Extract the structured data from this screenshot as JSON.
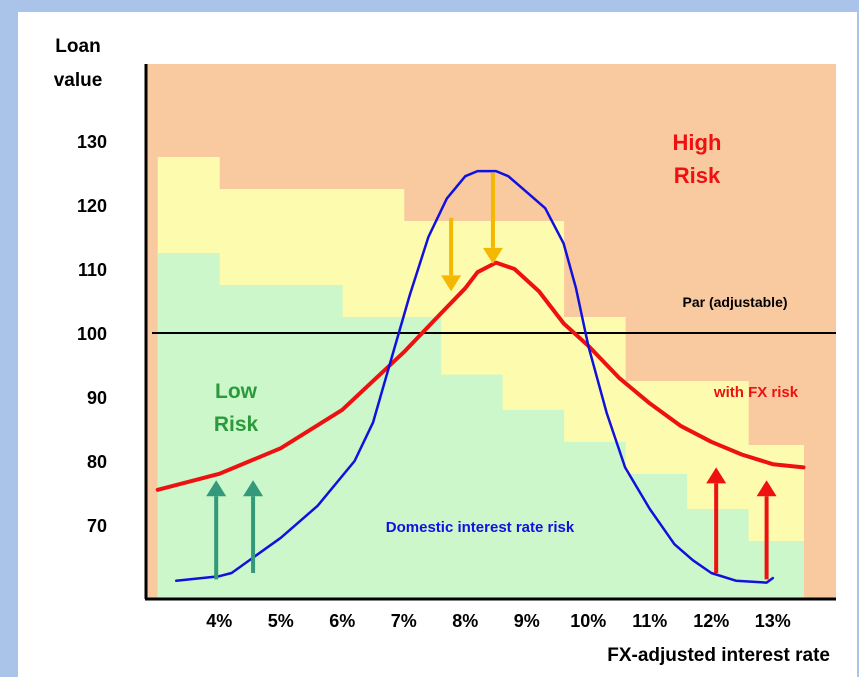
{
  "chart_data": {
    "type": "line",
    "xlabel": "FX-adjusted interest rate",
    "ylabel_lines": [
      "Loan",
      "value"
    ],
    "xlim": [
      3.0,
      13.5
    ],
    "ylim": [
      60,
      140
    ],
    "x_ticks": [
      {
        "value": 4,
        "label": "4%"
      },
      {
        "value": 5,
        "label": "5%"
      },
      {
        "value": 6,
        "label": "6%"
      },
      {
        "value": 7,
        "label": "7%"
      },
      {
        "value": 8,
        "label": "8%"
      },
      {
        "value": 9,
        "label": "9%"
      },
      {
        "value": 10,
        "label": "10%"
      },
      {
        "value": 11,
        "label": "11%"
      },
      {
        "value": 12,
        "label": "12%"
      },
      {
        "value": 13,
        "label": "13%"
      }
    ],
    "y_ticks": [
      {
        "value": 70,
        "label": "70"
      },
      {
        "value": 80,
        "label": "80"
      },
      {
        "value": 90,
        "label": "90"
      },
      {
        "value": 100,
        "label": "100"
      },
      {
        "value": 110,
        "label": "110"
      },
      {
        "value": 120,
        "label": "120"
      },
      {
        "value": 130,
        "label": "130"
      }
    ],
    "par_line": {
      "value": 100,
      "label": "Par (adjustable)"
    },
    "regions": {
      "high_risk_color": "#f9c9a0",
      "mid_risk_color": "#fdfcae",
      "low_risk_color": "#cbf7cb",
      "yellow_top_steps": [
        {
          "x0": 3.0,
          "x1": 4.0,
          "y": 127.5
        },
        {
          "x0": 4.0,
          "x1": 7.0,
          "y": 122.5
        },
        {
          "x0": 7.0,
          "x1": 9.6,
          "y": 117.5
        },
        {
          "x0": 9.6,
          "x1": 10.6,
          "y": 102.5
        },
        {
          "x0": 10.6,
          "x1": 12.6,
          "y": 92.5
        },
        {
          "x0": 12.6,
          "x1": 13.5,
          "y": 82.5
        }
      ],
      "green_top_steps": [
        {
          "x0": 3.0,
          "x1": 4.0,
          "y": 112.5
        },
        {
          "x0": 4.0,
          "x1": 6.0,
          "y": 107.5
        },
        {
          "x0": 6.0,
          "x1": 7.6,
          "y": 102.5
        },
        {
          "x0": 7.6,
          "x1": 8.6,
          "y": 93.5
        },
        {
          "x0": 8.6,
          "x1": 9.6,
          "y": 88.0
        },
        {
          "x0": 9.6,
          "x1": 10.6,
          "y": 83.0
        },
        {
          "x0": 10.6,
          "x1": 11.6,
          "y": 78.0
        },
        {
          "x0": 11.6,
          "x1": 12.6,
          "y": 72.5
        },
        {
          "x0": 12.6,
          "x1": 13.5,
          "y": 67.5
        }
      ]
    },
    "series": [
      {
        "name": "with FX risk",
        "color": "#ee1111",
        "points": [
          [
            3.0,
            75.5
          ],
          [
            4.0,
            78.0
          ],
          [
            5.0,
            82.0
          ],
          [
            6.0,
            88.0
          ],
          [
            7.0,
            97.0
          ],
          [
            7.6,
            103.0
          ],
          [
            8.0,
            107.0
          ],
          [
            8.2,
            109.5
          ],
          [
            8.5,
            111.0
          ],
          [
            8.8,
            110.0
          ],
          [
            9.2,
            106.5
          ],
          [
            9.6,
            101.5
          ],
          [
            10.0,
            98.0
          ],
          [
            10.5,
            93.0
          ],
          [
            11.0,
            89.0
          ],
          [
            11.5,
            85.5
          ],
          [
            12.0,
            83.0
          ],
          [
            12.5,
            81.0
          ],
          [
            13.0,
            79.5
          ],
          [
            13.5,
            79.0
          ]
        ]
      },
      {
        "name": "Domestic interest rate risk",
        "color": "#1111dd",
        "points": [
          [
            3.3,
            61.3
          ],
          [
            4.0,
            62.0
          ],
          [
            4.2,
            62.5
          ],
          [
            5.0,
            68.0
          ],
          [
            5.6,
            73.0
          ],
          [
            6.2,
            80.0
          ],
          [
            6.5,
            86.0
          ],
          [
            6.8,
            96.0
          ],
          [
            7.1,
            106.0
          ],
          [
            7.4,
            115.0
          ],
          [
            7.7,
            121.0
          ],
          [
            8.0,
            124.5
          ],
          [
            8.2,
            125.3
          ],
          [
            8.5,
            125.3
          ],
          [
            8.7,
            124.5
          ],
          [
            9.0,
            122.0
          ],
          [
            9.3,
            119.5
          ],
          [
            9.6,
            114.0
          ],
          [
            9.8,
            107.0
          ],
          [
            10.0,
            98.0
          ],
          [
            10.3,
            87.5
          ],
          [
            10.6,
            79.0
          ],
          [
            11.0,
            72.5
          ],
          [
            11.4,
            67.0
          ],
          [
            11.7,
            64.5
          ],
          [
            12.0,
            62.5
          ],
          [
            12.4,
            61.3
          ],
          [
            12.9,
            61.0
          ],
          [
            13.0,
            61.7
          ]
        ]
      }
    ],
    "arrows": [
      {
        "color": "#33997a",
        "x": 3.95,
        "y_from": 61.5,
        "y_to": 77.0
      },
      {
        "color": "#33997a",
        "x": 4.55,
        "y_from": 62.5,
        "y_to": 77.0
      },
      {
        "color": "#f5b800",
        "x": 7.77,
        "y_from": 118.0,
        "y_to": 106.5
      },
      {
        "color": "#f5b800",
        "x": 8.45,
        "y_from": 125.0,
        "y_to": 110.8
      },
      {
        "color": "#ee1111",
        "x": 12.08,
        "y_from": 62.5,
        "y_to": 79.0
      },
      {
        "color": "#ee1111",
        "x": 12.9,
        "y_from": 61.5,
        "y_to": 77.0
      }
    ],
    "annotations": {
      "high_risk_lines": [
        "High",
        "Risk"
      ],
      "low_risk_lines": [
        "Low",
        "Risk"
      ],
      "high_risk_color": "#ee1111",
      "low_risk_color": "#2c9a3c",
      "fx_label_color": "#ee1111",
      "domestic_label_color": "#1111dd",
      "par_label_color": "#000000"
    }
  }
}
